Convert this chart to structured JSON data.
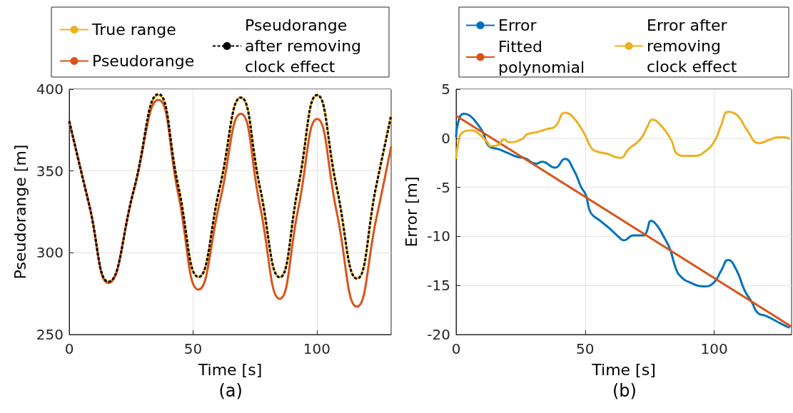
{
  "chart_data": [
    {
      "type": "line",
      "xlabel": "Time [s]",
      "ylabel": "Pseudorange [m]",
      "annotations": [
        "(a)"
      ],
      "x": [
        0,
        8,
        15.8,
        26,
        36,
        44,
        52.2,
        60.8,
        69.3,
        77,
        85,
        92.5,
        100.1,
        108,
        116.2,
        124,
        130
      ],
      "series": [
        {
          "name": "True range",
          "color": "#edb120",
          "values": [
            380.4,
            329.5,
            282.3,
            338,
            396.4,
            341,
            285.2,
            340,
            394.9,
            340,
            285,
            340.5,
            396.4,
            340,
            284.2,
            341,
            384
          ]
        },
        {
          "name": "Pseudorange",
          "color": "#d95319",
          "values": [
            380.4,
            330,
            281.5,
            337.5,
            393.5,
            336,
            277.5,
            331,
            385,
            329,
            271.8,
            327,
            381.8,
            325,
            267,
            320.8,
            365
          ]
        },
        {
          "name": "Pseudorange after removing clock effect",
          "color": "#000000",
          "line_style": "dashed",
          "values": [
            380.4,
            329.5,
            282.3,
            338,
            397,
            341,
            285.2,
            340,
            394.9,
            340,
            285,
            340.5,
            396.4,
            340,
            284.2,
            341,
            384
          ]
        }
      ],
      "xlim": [
        0,
        130
      ],
      "xticks": [
        0,
        50,
        100
      ],
      "ylim": [
        250,
        400
      ],
      "yticks": [
        250,
        300,
        350,
        400
      ],
      "grid": true,
      "legend": "top",
      "marker": "none"
    },
    {
      "type": "line",
      "xlabel": "Time [s]",
      "ylabel": "Error [m]",
      "annotations": [
        "(b)"
      ],
      "series": [
        {
          "name": "Error",
          "color": "#0072bd",
          "x": [
            0,
            0.7,
            3,
            5.3,
            8.1,
            10.4,
            12.7,
            16.3,
            20,
            23.7,
            26.4,
            31,
            33.3,
            38.4,
            42.1,
            45.7,
            48.5,
            50.3,
            52.2,
            55.8,
            59.5,
            63.2,
            65,
            68.7,
            72.4,
            73.7,
            75.6,
            77.9,
            80.6,
            82.9,
            85.2,
            87.1,
            90.7,
            96.2,
            99.9,
            102.7,
            105.4,
            108.6,
            111.8,
            114.6,
            116.9,
            120.1,
            123.8,
            127.5,
            129.3
          ],
          "values": [
            0.1,
            1.5,
            2.5,
            2.3,
            1.5,
            0.6,
            -0.8,
            -1.1,
            -1.5,
            -1.9,
            -2,
            -2.6,
            -2.4,
            -3,
            -2.1,
            -3.3,
            -5,
            -5.8,
            -7.6,
            -8.4,
            -9.2,
            -10.1,
            -10.4,
            -9.9,
            -9.9,
            -9.6,
            -8.4,
            -8.9,
            -10.1,
            -11.3,
            -13.3,
            -14.1,
            -14.7,
            -15.1,
            -14.7,
            -13.5,
            -12.4,
            -13.4,
            -15.5,
            -16.7,
            -17.8,
            -18.1,
            -18.6,
            -19.1,
            -19.3
          ]
        },
        {
          "name": "Fitted polynomial",
          "color": "#d95319",
          "x": [
            0,
            130
          ],
          "values": [
            2.3,
            -19.2
          ]
        },
        {
          "name": "Error after removing clock effect",
          "color": "#edb120",
          "x": [
            0,
            0.7,
            2.6,
            6.2,
            9,
            11.8,
            13.6,
            16.3,
            18.6,
            20.5,
            25.5,
            27.4,
            31,
            34.7,
            38.4,
            42.1,
            44.8,
            49.4,
            52.2,
            54,
            58.6,
            63.6,
            66.9,
            71.4,
            74.2,
            76,
            79.7,
            83.4,
            85.7,
            88.9,
            92.6,
            96.2,
            99.9,
            102.7,
            105.4,
            109.1,
            112.8,
            117.4,
            121,
            124.7,
            127.5,
            129.3
          ],
          "values": [
            -2.1,
            -0.7,
            0.6,
            0.8,
            0.4,
            -0.3,
            -0.8,
            -0.7,
            -0.1,
            -0.4,
            -0.1,
            0.4,
            0.6,
            0.9,
            1.2,
            2.6,
            2.3,
            0.6,
            -0.9,
            -1.3,
            -1.6,
            -2,
            -1.1,
            -0.1,
            1.2,
            1.9,
            1.2,
            -0.2,
            -1.6,
            -1.8,
            -1.8,
            -1.4,
            -0.4,
            1.3,
            2.7,
            2.3,
            0.8,
            -0.5,
            -0.2,
            0.1,
            0.1,
            -0.1
          ]
        }
      ],
      "xlim": [
        0,
        130
      ],
      "xticks": [
        0,
        50,
        100
      ],
      "ylim": [
        -20,
        5
      ],
      "yticks": [
        -20,
        -15,
        -10,
        -5,
        0,
        5
      ],
      "grid": true,
      "legend": "top",
      "marker": "none"
    }
  ]
}
